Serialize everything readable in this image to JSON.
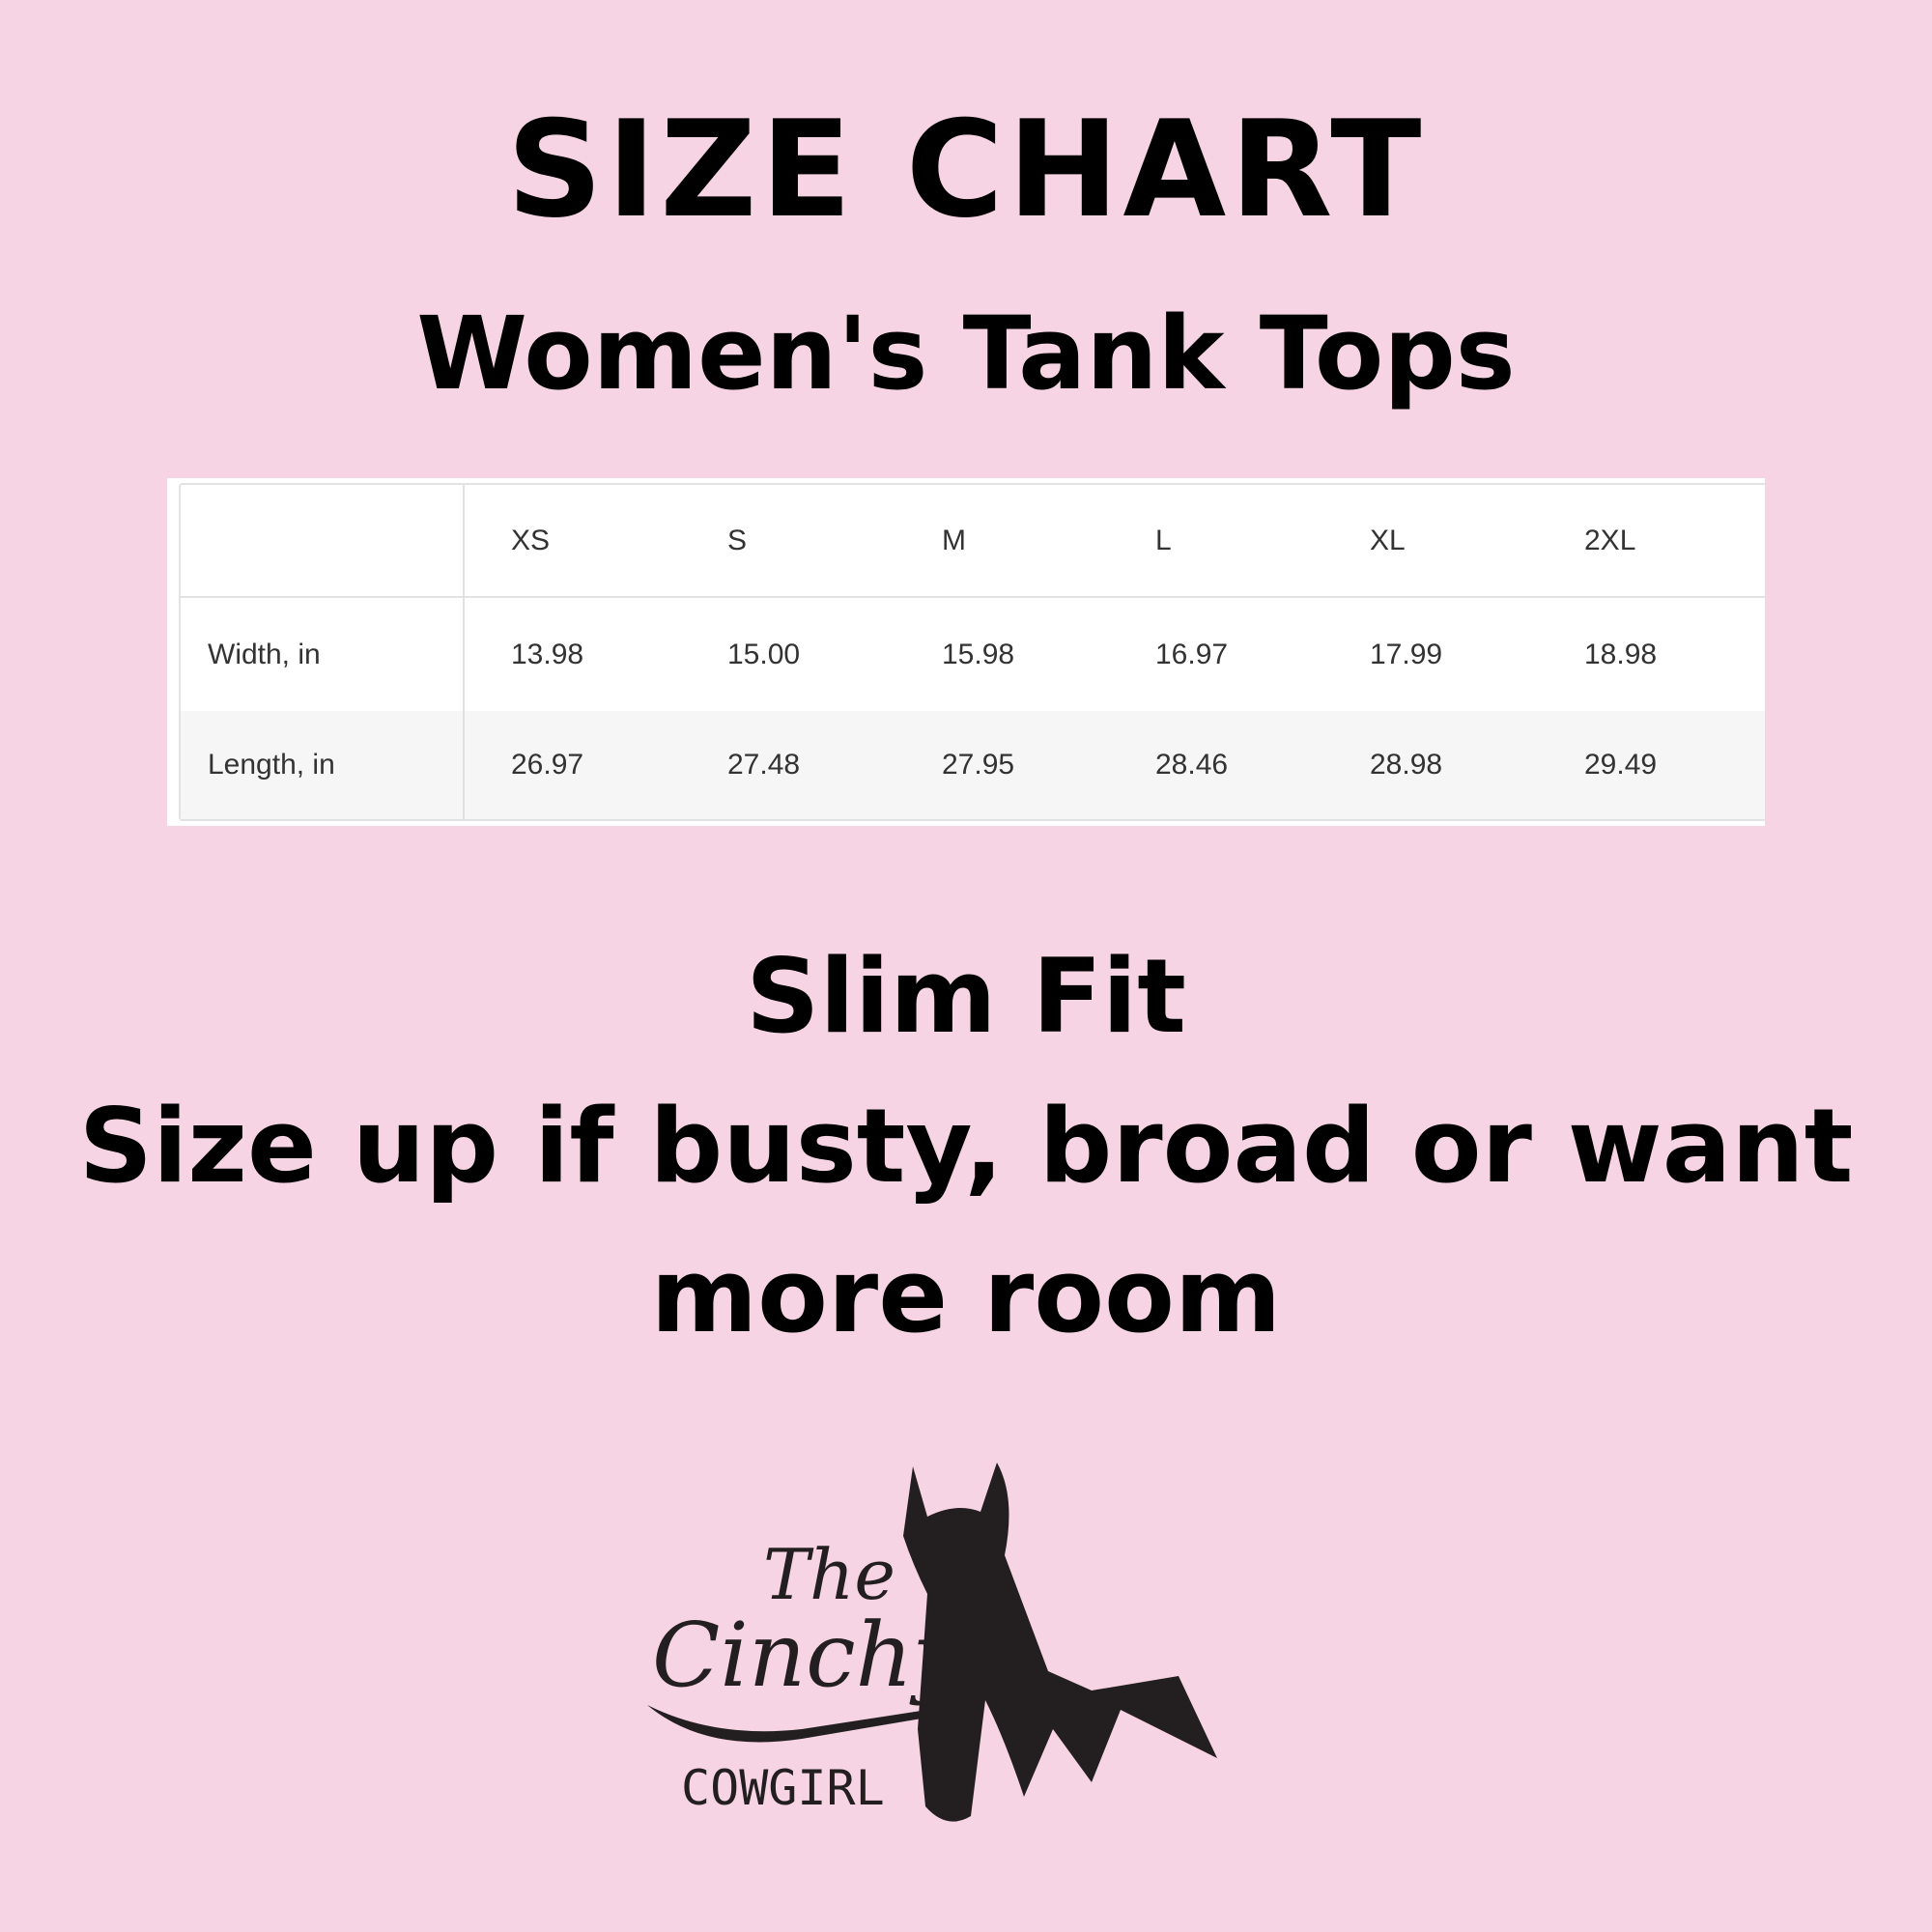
{
  "title": "SIZE CHART",
  "subtitle": "Women's Tank Tops",
  "table": {
    "columns": [
      "",
      "XS",
      "S",
      "M",
      "L",
      "XL",
      "2XL"
    ],
    "rows": [
      {
        "label": "Width, in",
        "values": [
          "13.98",
          "15.00",
          "15.98",
          "16.97",
          "17.99",
          "18.98"
        ]
      },
      {
        "label": "Length, in",
        "values": [
          "26.97",
          "27.48",
          "27.95",
          "28.46",
          "28.98",
          "29.49"
        ]
      }
    ]
  },
  "fit": "Slim Fit",
  "note_line1": "Size up if busty, broad or want",
  "note_line2": "more room",
  "logo": {
    "line1": "The",
    "line2": "Cinchy",
    "line3": "COWGIRL"
  },
  "colors": {
    "background": "#f7d4e3",
    "text": "#000000",
    "logo": "#231f20"
  }
}
